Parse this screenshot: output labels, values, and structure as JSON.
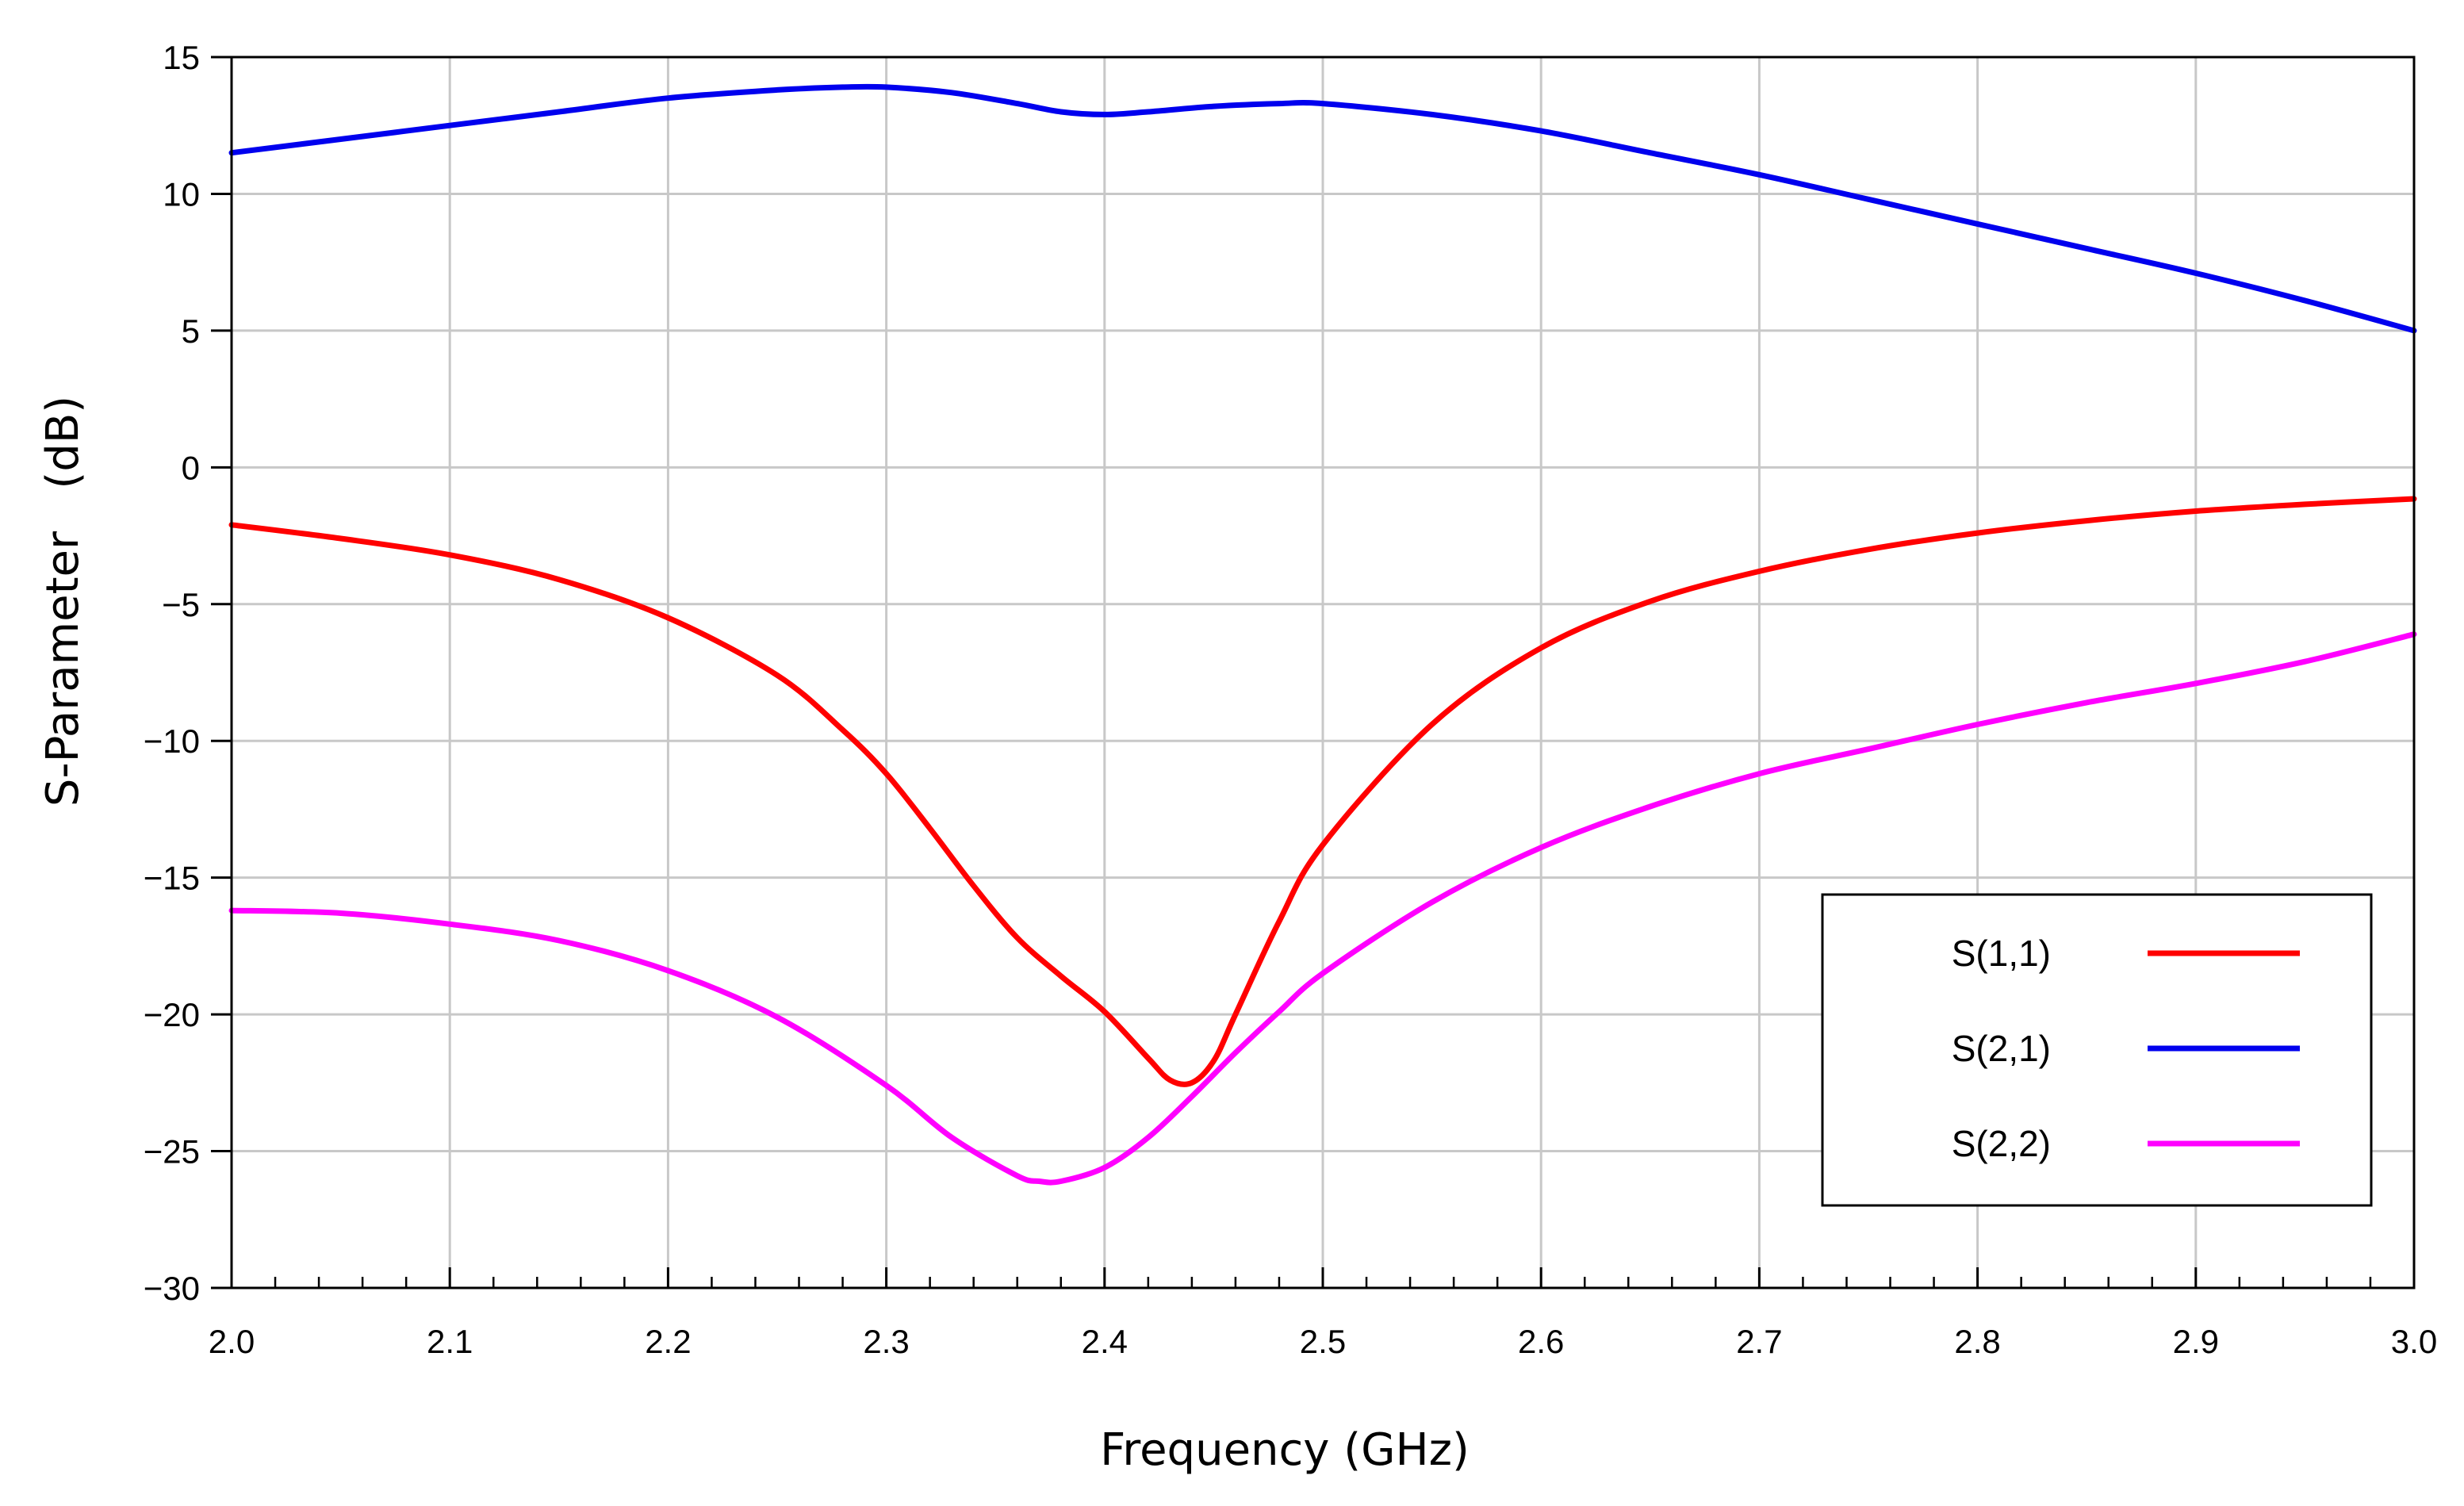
{
  "chart_data": {
    "type": "line",
    "title": "",
    "xlabel": "Frequency (GHz)",
    "ylabel": "S-Parameter   (dB)",
    "xlim": [
      2.0,
      3.0
    ],
    "ylim": [
      -30,
      15
    ],
    "xticks": [
      2.0,
      2.1,
      2.2,
      2.3,
      2.4,
      2.5,
      2.6,
      2.7,
      2.8,
      2.9,
      3.0
    ],
    "xtick_labels": [
      "2.0",
      "2.1",
      "2.2",
      "2.3",
      "2.4",
      "2.5",
      "2.6",
      "2.7",
      "2.8",
      "2.9",
      "3.0"
    ],
    "yticks": [
      15,
      10,
      5,
      0,
      -5,
      -10,
      -15,
      -20,
      -25,
      -30
    ],
    "ytick_labels": [
      "15",
      "10",
      "5",
      "0",
      "−5",
      "−10",
      "−15",
      "−20",
      "−25",
      "−30"
    ],
    "grid": true,
    "legend_position": "bottom-right",
    "series": [
      {
        "name": "S(1,1)",
        "color": "#ff0000",
        "x": [
          2.0,
          2.05,
          2.1,
          2.15,
          2.2,
          2.25,
          2.28,
          2.3,
          2.32,
          2.34,
          2.36,
          2.38,
          2.4,
          2.42,
          2.43,
          2.44,
          2.45,
          2.46,
          2.48,
          2.5,
          2.55,
          2.6,
          2.65,
          2.7,
          2.75,
          2.8,
          2.85,
          2.9,
          2.95,
          3.0
        ],
        "y": [
          -2.1,
          -2.6,
          -3.2,
          -4.1,
          -5.5,
          -7.6,
          -9.6,
          -11.2,
          -13.2,
          -15.3,
          -17.2,
          -18.6,
          -19.9,
          -21.6,
          -22.4,
          -22.5,
          -21.7,
          -20.0,
          -16.6,
          -13.8,
          -9.4,
          -6.6,
          -4.9,
          -3.8,
          -3.0,
          -2.4,
          -1.95,
          -1.6,
          -1.35,
          -1.15
        ]
      },
      {
        "name": "S(2,1)",
        "color": "#0000ee",
        "x": [
          2.0,
          2.05,
          2.1,
          2.15,
          2.2,
          2.25,
          2.28,
          2.3,
          2.33,
          2.36,
          2.38,
          2.4,
          2.42,
          2.45,
          2.48,
          2.5,
          2.55,
          2.6,
          2.65,
          2.7,
          2.75,
          2.8,
          2.85,
          2.9,
          2.95,
          3.0
        ],
        "y": [
          11.5,
          12.0,
          12.5,
          13.0,
          13.5,
          13.8,
          13.9,
          13.9,
          13.7,
          13.3,
          13.0,
          12.9,
          13.0,
          13.2,
          13.3,
          13.3,
          12.9,
          12.3,
          11.5,
          10.7,
          9.8,
          8.9,
          8.0,
          7.1,
          6.1,
          5.0
        ]
      },
      {
        "name": "S(2,2)",
        "color": "#ff00ff",
        "x": [
          2.0,
          2.05,
          2.1,
          2.15,
          2.2,
          2.25,
          2.3,
          2.33,
          2.36,
          2.37,
          2.38,
          2.4,
          2.42,
          2.44,
          2.46,
          2.48,
          2.5,
          2.55,
          2.6,
          2.65,
          2.7,
          2.75,
          2.8,
          2.85,
          2.9,
          2.95,
          3.0
        ],
        "y": [
          -16.2,
          -16.3,
          -16.7,
          -17.3,
          -18.4,
          -20.1,
          -22.6,
          -24.5,
          -25.9,
          -26.1,
          -26.1,
          -25.6,
          -24.5,
          -23.0,
          -21.4,
          -19.9,
          -18.5,
          -15.9,
          -13.9,
          -12.4,
          -11.2,
          -10.3,
          -9.4,
          -8.6,
          -7.9,
          -7.1,
          -6.1
        ]
      }
    ]
  }
}
